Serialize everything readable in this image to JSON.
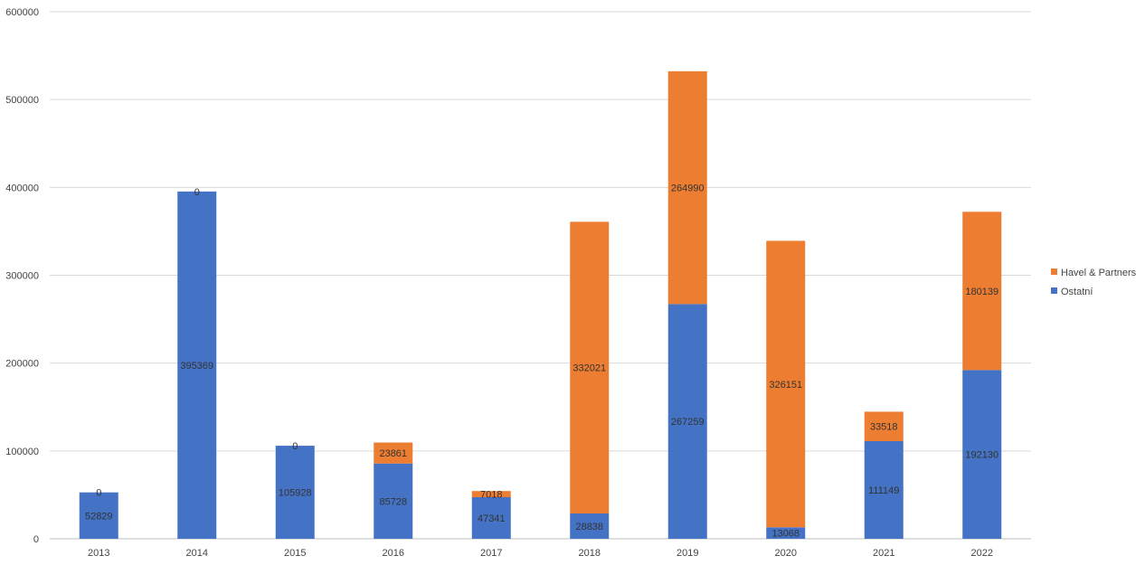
{
  "chart_data": {
    "type": "bar",
    "stacked": true,
    "categories": [
      "2013",
      "2014",
      "2015",
      "2016",
      "2017",
      "2018",
      "2019",
      "2020",
      "2021",
      "2022"
    ],
    "series": [
      {
        "name": "Ostatní",
        "color": "#4472C4",
        "values": [
          52829,
          395369,
          105928,
          85728,
          47341,
          28838,
          267259,
          13068,
          111149,
          192130
        ]
      },
      {
        "name": "Havel & Partners",
        "color": "#ED7D31",
        "values": [
          0,
          0,
          0,
          23861,
          7018,
          332021,
          264990,
          326151,
          33518,
          180139
        ]
      }
    ],
    "ylim": [
      0,
      600000
    ],
    "yticks": [
      "0",
      "100000",
      "200000",
      "300000",
      "400000",
      "500000",
      "600000"
    ],
    "grid": true,
    "legend_position": "right",
    "legend_order": [
      "Havel & Partners",
      "Ostatní"
    ],
    "title": "",
    "xlabel": "",
    "ylabel": ""
  }
}
